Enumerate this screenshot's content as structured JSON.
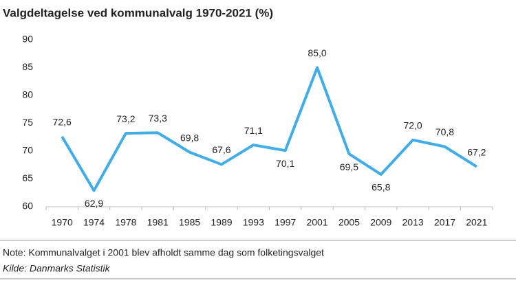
{
  "chart_data": {
    "type": "line",
    "title": "Valgdeltagelse ved kommunalvalg 1970-2021 (%)",
    "categories": [
      "1970",
      "1974",
      "1978",
      "1981",
      "1985",
      "1989",
      "1993",
      "1997",
      "2001",
      "2005",
      "2009",
      "2013",
      "2017",
      "2021"
    ],
    "series": [
      {
        "name": "Valgdeltagelse",
        "color": "#41ade8",
        "values": [
          72.6,
          62.9,
          73.2,
          73.3,
          69.8,
          67.6,
          71.1,
          70.1,
          85.0,
          69.5,
          65.8,
          72.0,
          70.8,
          67.2
        ],
        "value_labels": [
          "72,6",
          "62,9",
          "73,2",
          "73,3",
          "69,8",
          "67,6",
          "71,1",
          "70,1",
          "85,0",
          "69,5",
          "65,8",
          "72,0",
          "70,8",
          "67,2"
        ]
      }
    ],
    "ylim": [
      60,
      90
    ],
    "yticks": [
      60,
      65,
      70,
      75,
      80,
      85,
      90
    ],
    "note": "Note: Kommunalvalget i 2001 blev afholdt samme dag som folketingsvalget",
    "source": "Kilde: Danmarks Statistik"
  }
}
